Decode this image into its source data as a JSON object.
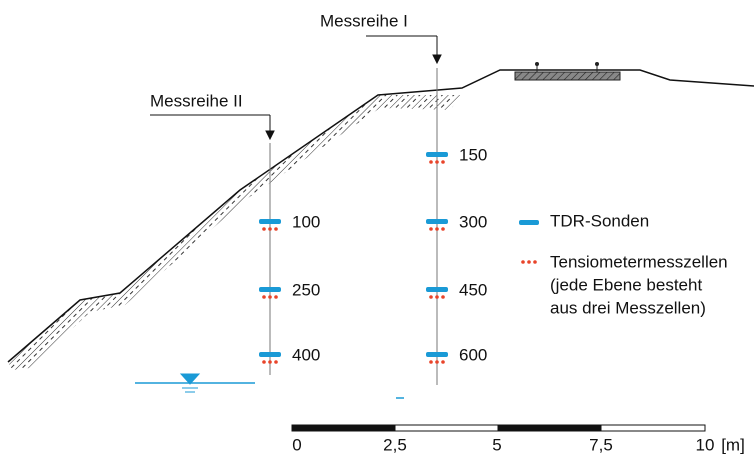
{
  "measurement_rows": [
    {
      "label": "Messreihe I",
      "depths": [
        "150",
        "300",
        "450",
        "600"
      ]
    },
    {
      "label": "Messreihe II",
      "depths": [
        "100",
        "250",
        "400"
      ]
    }
  ],
  "legend": [
    {
      "label": "TDR-Sonden"
    },
    {
      "label": "Tensiometermesszellen",
      "note": [
        "(jede Ebene besteht",
        "aus drei Messzellen)"
      ]
    }
  ],
  "scale": {
    "ticks": [
      "0",
      "2,5",
      "5",
      "7,5",
      "10"
    ],
    "unit": "[m]"
  }
}
